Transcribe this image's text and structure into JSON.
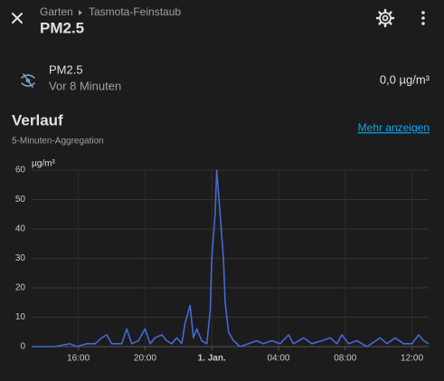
{
  "header": {
    "breadcrumb": [
      "Garten",
      "Tasmota-Feinstaub"
    ],
    "title": "PM2.5"
  },
  "entity": {
    "name": "PM2.5",
    "last_changed": "Vor 8 Minuten",
    "state": "0,0 µg/m³"
  },
  "history": {
    "title": "Verlauf",
    "subtitle": "5-Minuten-Aggregation",
    "link": "Mehr anzeigen"
  },
  "chart_data": {
    "type": "line",
    "y_label": "µg/m³",
    "x": [
      13.2,
      14.6,
      15.5,
      15.9,
      16.5,
      17.0,
      17.4,
      17.7,
      18.0,
      18.6,
      18.9,
      19.2,
      19.6,
      20.0,
      20.3,
      20.6,
      21.0,
      21.3,
      21.6,
      21.9,
      22.2,
      22.4,
      22.7,
      22.9,
      23.1,
      23.4,
      23.7,
      23.9,
      24.0,
      24.2,
      24.3,
      24.5,
      24.7,
      24.8,
      25.0,
      25.3,
      25.7,
      26.2,
      26.7,
      27.1,
      27.6,
      28.1,
      28.6,
      28.9,
      29.5,
      30.0,
      30.6,
      31.1,
      31.5,
      31.8,
      32.2,
      32.7,
      33.3,
      34.1,
      34.5,
      35.0,
      35.5,
      36.0,
      36.4,
      36.7,
      37.0
    ],
    "values": [
      0,
      0,
      1,
      0,
      1,
      1,
      3,
      4,
      1,
      1,
      6,
      1,
      2,
      6,
      1,
      3,
      4,
      2,
      1,
      3,
      1,
      8,
      14,
      3,
      6,
      2,
      1,
      12,
      30,
      45,
      60,
      45,
      30,
      15,
      5,
      2,
      0,
      1,
      2,
      1,
      2,
      1,
      4,
      1,
      3,
      1,
      2,
      3,
      1,
      4,
      1,
      2,
      0,
      3,
      1,
      3,
      1,
      1,
      4,
      2,
      1
    ],
    "color": "#4468d6",
    "xlim": [
      13.2,
      37.0
    ],
    "xticks": [
      {
        "value": 16,
        "label": "16:00"
      },
      {
        "value": 20,
        "label": "20:00"
      },
      {
        "value": 24,
        "label": "1. Jan."
      },
      {
        "value": 28,
        "label": "04:00"
      },
      {
        "value": 32,
        "label": "08:00"
      },
      {
        "value": 36,
        "label": "12:00"
      }
    ],
    "ylim": [
      0,
      60
    ],
    "yticks": [
      0,
      10,
      20,
      30,
      40,
      50,
      60
    ],
    "grid": true
  }
}
